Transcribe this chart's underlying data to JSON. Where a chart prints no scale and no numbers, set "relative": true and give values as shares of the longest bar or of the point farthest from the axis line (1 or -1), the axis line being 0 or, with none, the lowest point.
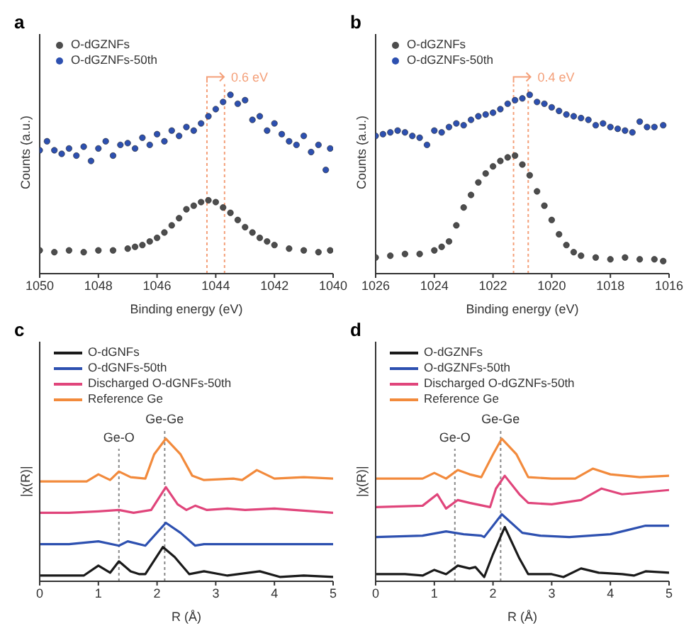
{
  "chart_data": [
    {
      "type": "scatter",
      "title": "a",
      "xlabel": "Binding energy (eV)",
      "ylabel": "Counts (a.u.)",
      "relative": true,
      "marker": "circle",
      "legend": "top left",
      "xlim": [
        1050,
        1040
      ],
      "xticks": [
        1050,
        1048,
        1046,
        1044,
        1042,
        1040
      ],
      "ref_lines": [
        {
          "axis": "x",
          "value": 1044.3,
          "color": "#f4a07a",
          "line_style": "dotted"
        },
        {
          "axis": "x",
          "value": 1043.7,
          "color": "#f4a07a",
          "line_style": "dotted"
        }
      ],
      "annotations": [
        "0.6 eV"
      ],
      "series": [
        {
          "name": "O-dGZNFs",
          "color": "#4d4d4d",
          "x": [
            1050,
            1049.5,
            1049,
            1048.5,
            1048,
            1047.5,
            1047,
            1046.75,
            1046.5,
            1046.25,
            1046,
            1045.75,
            1045.5,
            1045.25,
            1045,
            1044.75,
            1044.5,
            1044.25,
            1044,
            1043.75,
            1043.5,
            1043.25,
            1043,
            1042.75,
            1042.5,
            1042.25,
            1042,
            1041.5,
            1041,
            1040.5,
            1040.1
          ],
          "values": [
            0.13,
            0.12,
            0.13,
            0.12,
            0.13,
            0.13,
            0.14,
            0.15,
            0.16,
            0.18,
            0.2,
            0.23,
            0.27,
            0.31,
            0.36,
            0.38,
            0.4,
            0.41,
            0.4,
            0.37,
            0.34,
            0.3,
            0.26,
            0.23,
            0.2,
            0.18,
            0.16,
            0.14,
            0.13,
            0.12,
            0.13
          ]
        },
        {
          "name": "O-dGZNFs-50th",
          "color": "#2d50b0",
          "x": [
            1050,
            1049.75,
            1049.5,
            1049.25,
            1049,
            1048.75,
            1048.5,
            1048.25,
            1048,
            1047.75,
            1047.5,
            1047.25,
            1047,
            1046.75,
            1046.5,
            1046.25,
            1046,
            1045.75,
            1045.5,
            1045.25,
            1045,
            1044.75,
            1044.5,
            1044.25,
            1044,
            1043.75,
            1043.5,
            1043.25,
            1043,
            1042.75,
            1042.5,
            1042.25,
            1042,
            1041.75,
            1041.5,
            1041.25,
            1041,
            1040.75,
            1040.5,
            1040.25,
            1040.1
          ],
          "values": [
            0.69,
            0.74,
            0.69,
            0.67,
            0.7,
            0.66,
            0.71,
            0.63,
            0.7,
            0.74,
            0.66,
            0.72,
            0.73,
            0.7,
            0.76,
            0.72,
            0.78,
            0.74,
            0.8,
            0.77,
            0.82,
            0.8,
            0.84,
            0.88,
            0.92,
            0.96,
            1.0,
            0.95,
            0.97,
            0.86,
            0.88,
            0.8,
            0.84,
            0.78,
            0.74,
            0.72,
            0.77,
            0.68,
            0.72,
            0.58,
            0.7
          ]
        }
      ]
    },
    {
      "type": "scatter",
      "title": "b",
      "xlabel": "Binding energy (eV)",
      "ylabel": "Counts (a.u.)",
      "relative": true,
      "marker": "circle",
      "legend": "top left",
      "xlim": [
        1026,
        1016
      ],
      "xticks": [
        1026,
        1024,
        1022,
        1020,
        1018,
        1016
      ],
      "ref_lines": [
        {
          "axis": "x",
          "value": 1021.3,
          "color": "#f4a07a",
          "line_style": "dotted"
        },
        {
          "axis": "x",
          "value": 1020.8,
          "color": "#f4a07a",
          "line_style": "dotted"
        }
      ],
      "annotations": [
        "0.4 eV"
      ],
      "series": [
        {
          "name": "O-dGZNFs",
          "color": "#4d4d4d",
          "x": [
            1026,
            1025.5,
            1025,
            1024.5,
            1024,
            1023.75,
            1023.5,
            1023.25,
            1023,
            1022.75,
            1022.5,
            1022.25,
            1022,
            1021.75,
            1021.5,
            1021.25,
            1021,
            1020.75,
            1020.5,
            1020.25,
            1020,
            1019.75,
            1019.5,
            1019.25,
            1019,
            1018.5,
            1018,
            1017.5,
            1017,
            1016.5,
            1016.2
          ],
          "values": [
            0.09,
            0.1,
            0.11,
            0.11,
            0.13,
            0.15,
            0.18,
            0.27,
            0.37,
            0.44,
            0.51,
            0.56,
            0.6,
            0.63,
            0.65,
            0.66,
            0.61,
            0.55,
            0.46,
            0.38,
            0.3,
            0.22,
            0.16,
            0.12,
            0.1,
            0.09,
            0.08,
            0.09,
            0.08,
            0.08,
            0.07
          ]
        },
        {
          "name": "O-dGZNFs-50th",
          "color": "#2d50b0",
          "x": [
            1026,
            1025.75,
            1025.5,
            1025.25,
            1025,
            1024.75,
            1024.5,
            1024.25,
            1024,
            1023.75,
            1023.5,
            1023.25,
            1023,
            1022.75,
            1022.5,
            1022.25,
            1022,
            1021.75,
            1021.5,
            1021.25,
            1021,
            1020.75,
            1020.5,
            1020.25,
            1020,
            1019.75,
            1019.5,
            1019.25,
            1019,
            1018.75,
            1018.5,
            1018.25,
            1018,
            1017.75,
            1017.5,
            1017.25,
            1017,
            1016.75,
            1016.5,
            1016.2
          ],
          "values": [
            0.77,
            0.78,
            0.79,
            0.8,
            0.79,
            0.77,
            0.76,
            0.72,
            0.8,
            0.79,
            0.82,
            0.84,
            0.83,
            0.86,
            0.88,
            0.89,
            0.9,
            0.92,
            0.95,
            0.97,
            0.98,
            1.0,
            0.96,
            0.95,
            0.93,
            0.91,
            0.89,
            0.88,
            0.87,
            0.86,
            0.83,
            0.84,
            0.82,
            0.81,
            0.8,
            0.79,
            0.85,
            0.82,
            0.82,
            0.83
          ]
        }
      ]
    },
    {
      "type": "line",
      "title": "c",
      "xlabel": "R (Å)",
      "ylabel": "|χ(R)|",
      "relative": true,
      "marker": "none",
      "line_style": "solid",
      "legend": "top left",
      "xlim": [
        0,
        5
      ],
      "xticks": [
        0,
        1,
        2,
        3,
        4,
        5
      ],
      "ref_lines": [
        {
          "axis": "x",
          "value": 1.35,
          "label": "Ge-O",
          "color": "#888888",
          "line_style": "dotted"
        },
        {
          "axis": "x",
          "value": 2.13,
          "label": "Ge-Ge",
          "color": "#888888",
          "line_style": "dotted"
        }
      ],
      "series": [
        {
          "name": "O-dGNFs",
          "color": "#1a1a1a",
          "x": [
            0,
            0.5,
            0.75,
            1.0,
            1.2,
            1.35,
            1.55,
            1.7,
            1.8,
            2.1,
            2.3,
            2.55,
            2.8,
            3.2,
            3.75,
            4.1,
            4.5,
            5
          ],
          "values": [
            0.04,
            0.04,
            0.04,
            0.11,
            0.06,
            0.14,
            0.07,
            0.05,
            0.05,
            0.24,
            0.17,
            0.05,
            0.07,
            0.04,
            0.07,
            0.03,
            0.04,
            0.03
          ]
        },
        {
          "name": "O-dGNFs-50th",
          "color": "#2d50b0",
          "x": [
            0,
            0.5,
            1.0,
            1.35,
            1.5,
            1.8,
            2.15,
            2.4,
            2.65,
            2.8,
            3.0,
            4.0,
            5
          ],
          "values": [
            0.26,
            0.26,
            0.28,
            0.25,
            0.28,
            0.25,
            0.41,
            0.34,
            0.25,
            0.26,
            0.26,
            0.26,
            0.26
          ]
        },
        {
          "name": "Discharged O-dGNFs-50th",
          "color": "#e0457b",
          "x": [
            0,
            0.5,
            1.0,
            1.35,
            1.6,
            1.9,
            2.15,
            2.35,
            2.5,
            2.65,
            2.85,
            3.2,
            3.5,
            4.0,
            5
          ],
          "values": [
            0.48,
            0.48,
            0.49,
            0.5,
            0.48,
            0.5,
            0.66,
            0.54,
            0.5,
            0.53,
            0.5,
            0.51,
            0.5,
            0.51,
            0.48
          ]
        },
        {
          "name": "Reference Ge",
          "color": "#f28a3c",
          "x": [
            0,
            0.5,
            0.8,
            1.0,
            1.2,
            1.35,
            1.55,
            1.8,
            1.95,
            2.15,
            2.4,
            2.6,
            2.8,
            3.3,
            3.45,
            3.7,
            4.0,
            4.5,
            5
          ],
          "values": [
            0.7,
            0.7,
            0.7,
            0.75,
            0.71,
            0.77,
            0.73,
            0.72,
            0.89,
            1.0,
            0.89,
            0.74,
            0.71,
            0.72,
            0.71,
            0.78,
            0.72,
            0.73,
            0.72
          ]
        }
      ]
    },
    {
      "type": "line",
      "title": "d",
      "xlabel": "R (Å)",
      "ylabel": "|χ(R)|",
      "relative": true,
      "marker": "none",
      "line_style": "solid",
      "legend": "top left",
      "xlim": [
        0,
        5
      ],
      "xticks": [
        0,
        1,
        2,
        3,
        4,
        5
      ],
      "ref_lines": [
        {
          "axis": "x",
          "value": 1.35,
          "label": "Ge-O",
          "color": "#888888",
          "line_style": "dotted"
        },
        {
          "axis": "x",
          "value": 2.13,
          "label": "Ge-Ge",
          "color": "#888888",
          "line_style": "dotted"
        }
      ],
      "series": [
        {
          "name": "O-dGZNFs",
          "color": "#1a1a1a",
          "x": [
            0,
            0.5,
            0.8,
            1.0,
            1.2,
            1.4,
            1.6,
            1.7,
            1.85,
            2.0,
            2.2,
            2.45,
            2.6,
            3.0,
            3.2,
            3.5,
            3.8,
            4.2,
            4.4,
            4.6,
            5
          ],
          "values": [
            0.05,
            0.05,
            0.04,
            0.08,
            0.05,
            0.11,
            0.09,
            0.1,
            0.03,
            0.19,
            0.38,
            0.16,
            0.05,
            0.05,
            0.03,
            0.09,
            0.06,
            0.05,
            0.04,
            0.07,
            0.06
          ]
        },
        {
          "name": "O-dGZNFs-50th",
          "color": "#2d50b0",
          "x": [
            0,
            0.8,
            1.2,
            1.5,
            1.8,
            1.85,
            2.15,
            2.5,
            2.8,
            3.3,
            4.0,
            4.3,
            4.6,
            5
          ],
          "values": [
            0.31,
            0.32,
            0.35,
            0.33,
            0.32,
            0.31,
            0.47,
            0.34,
            0.32,
            0.31,
            0.33,
            0.36,
            0.39,
            0.39
          ]
        },
        {
          "name": "Discharged O-dGZNFs-50th",
          "color": "#e0457b",
          "x": [
            0,
            0.8,
            1.05,
            1.2,
            1.4,
            1.6,
            1.95,
            2.05,
            2.2,
            2.45,
            2.6,
            3.0,
            3.5,
            3.85,
            4.2,
            5
          ],
          "values": [
            0.52,
            0.53,
            0.61,
            0.51,
            0.57,
            0.55,
            0.52,
            0.65,
            0.74,
            0.61,
            0.55,
            0.54,
            0.57,
            0.65,
            0.61,
            0.64
          ]
        },
        {
          "name": "Reference Ge",
          "color": "#f28a3c",
          "x": [
            0,
            0.8,
            1.0,
            1.2,
            1.4,
            1.6,
            1.8,
            2.0,
            2.15,
            2.4,
            2.6,
            3.0,
            3.4,
            3.7,
            4.0,
            4.5,
            5
          ],
          "values": [
            0.72,
            0.72,
            0.76,
            0.72,
            0.78,
            0.75,
            0.73,
            0.89,
            1.0,
            0.89,
            0.73,
            0.72,
            0.72,
            0.79,
            0.75,
            0.73,
            0.74
          ]
        }
      ]
    }
  ]
}
